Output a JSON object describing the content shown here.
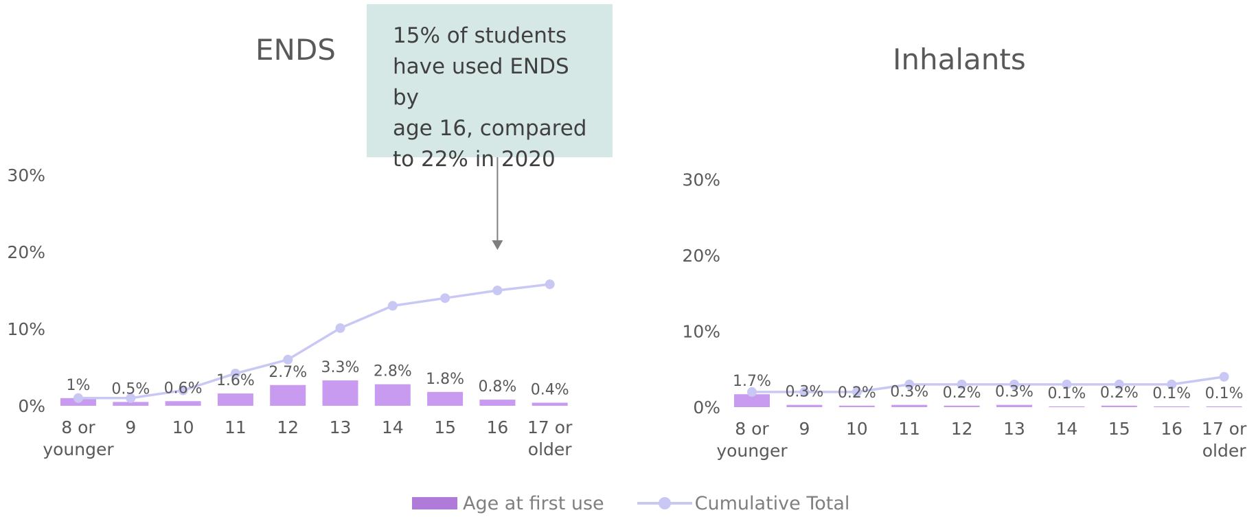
{
  "chart_data": [
    {
      "type": "bar",
      "title": "ENDS",
      "categories": [
        "8 or younger",
        "9",
        "10",
        "11",
        "12",
        "13",
        "14",
        "15",
        "16",
        "17 or older"
      ],
      "series": [
        {
          "name": "Age at first use",
          "type": "bar",
          "values": [
            1.0,
            0.5,
            0.6,
            1.6,
            2.7,
            3.3,
            2.8,
            1.8,
            0.8,
            0.4
          ],
          "labels": [
            "1%",
            "0.5%",
            "0.6%",
            "1.6%",
            "2.7%",
            "3.3%",
            "2.8%",
            "1.8%",
            "0.8%",
            "0.4%"
          ]
        },
        {
          "name": "Cumulative Total",
          "type": "line",
          "values": [
            1.0,
            1.0,
            2.0,
            4.2,
            6.0,
            10.1,
            13.0,
            14.0,
            15.0,
            15.8
          ]
        }
      ],
      "yticks": [
        "0%",
        "10%",
        "20%",
        "30%"
      ],
      "ylim": [
        0,
        30
      ],
      "grid": false
    },
    {
      "type": "bar",
      "title": "Inhalants",
      "categories": [
        "8 or younger",
        "9",
        "10",
        "11",
        "12",
        "13",
        "14",
        "15",
        "16",
        "17 or older"
      ],
      "series": [
        {
          "name": "Age at first use",
          "type": "bar",
          "values": [
            1.7,
            0.3,
            0.2,
            0.3,
            0.2,
            0.3,
            0.1,
            0.2,
            0.1,
            0.1
          ],
          "labels": [
            "1.7%",
            "0.3%",
            "0.2%",
            "0.3%",
            "0.2%",
            "0.3%",
            "0.1%",
            "0.2%",
            "0.1%",
            "0.1%"
          ]
        },
        {
          "name": "Cumulative Total",
          "type": "line",
          "values": [
            2.0,
            2.0,
            2.0,
            3.0,
            3.0,
            3.0,
            3.0,
            3.0,
            3.0,
            4.0
          ]
        }
      ],
      "yticks": [
        "0%",
        "10%",
        "20%",
        "30%"
      ],
      "ylim": [
        0,
        30
      ],
      "grid": false
    }
  ],
  "annotation": {
    "lines": [
      "15% of students",
      "have used ENDS by",
      "age 16, compared",
      "to 22% in 2020"
    ],
    "points_to": "16"
  },
  "legend": {
    "placement": "bottom",
    "bar_label": "Age at first use",
    "line_label": "Cumulative Total"
  },
  "colors": {
    "bar": "#c89bf0",
    "line": "#c9c8f5",
    "callout_bg": "#d6e8e6",
    "arrow": "#7f7f7f",
    "legend_bar": "#b07ad8"
  }
}
